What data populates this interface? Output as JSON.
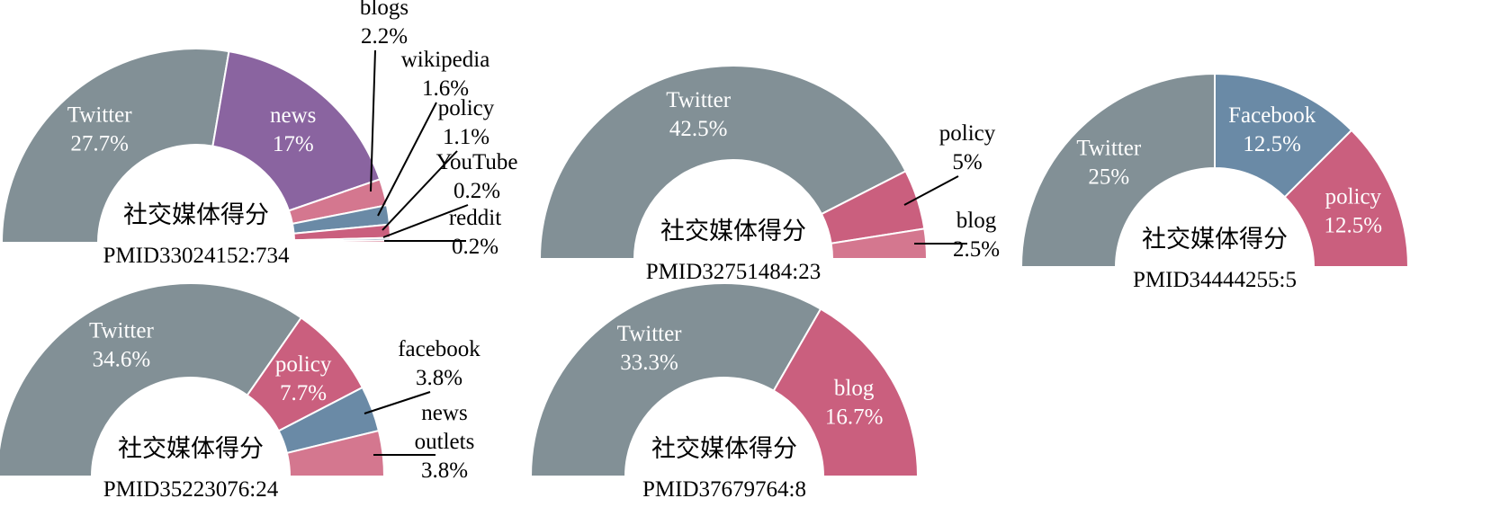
{
  "colors": {
    "Twitter": "#829096",
    "news": "#8a64a0",
    "blogs": "#d4778f",
    "blog": "#d4778f",
    "wikipedia": "#6a8aa6",
    "policy": "#ca5f7e",
    "YouTube": "#6a8aa6",
    "reddit": "#d4778f",
    "Facebook": "#6a8aa6",
    "facebook": "#6a8aa6",
    "news_outlets": "#d4778f",
    "blog_pmid37679764": "#ca5f7e"
  },
  "chart_data": [
    {
      "type": "pie",
      "variant": "semi-donut",
      "center_title": "社交媒体得分",
      "center_subtitle": "PMID33024152:734",
      "slices": [
        {
          "label": "Twitter",
          "label_lines": [
            "Twitter"
          ],
          "value": 27.7,
          "value_text": "27.7%",
          "color_key": "Twitter",
          "label_placement": "inside"
        },
        {
          "label": "news",
          "label_lines": [
            "news"
          ],
          "value": 17,
          "value_text": "17%",
          "color_key": "news",
          "label_placement": "inside"
        },
        {
          "label": "blogs",
          "label_lines": [
            "blogs"
          ],
          "value": 2.2,
          "value_text": "2.2%",
          "color_key": "blogs",
          "label_placement": "outside"
        },
        {
          "label": "wikipedia",
          "label_lines": [
            "wikipedia"
          ],
          "value": 1.6,
          "value_text": "1.6%",
          "color_key": "wikipedia",
          "label_placement": "outside"
        },
        {
          "label": "policy",
          "label_lines": [
            "policy"
          ],
          "value": 1.1,
          "value_text": "1.1%",
          "color_key": "policy",
          "label_placement": "outside"
        },
        {
          "label": "YouTube",
          "label_lines": [
            "YouTube"
          ],
          "value": 0.2,
          "value_text": "0.2%",
          "color_key": "YouTube",
          "label_placement": "outside"
        },
        {
          "label": "reddit",
          "label_lines": [
            "reddit"
          ],
          "value": 0.2,
          "value_text": "0.2%",
          "color_key": "reddit",
          "label_placement": "outside"
        }
      ]
    },
    {
      "type": "pie",
      "variant": "semi-donut",
      "center_title": "社交媒体得分",
      "center_subtitle": "PMID32751484:23",
      "slices": [
        {
          "label": "Twitter",
          "label_lines": [
            "Twitter"
          ],
          "value": 42.5,
          "value_text": "42.5%",
          "color_key": "Twitter",
          "label_placement": "inside"
        },
        {
          "label": "policy",
          "label_lines": [
            "policy"
          ],
          "value": 5,
          "value_text": "5%",
          "color_key": "policy",
          "label_placement": "outside"
        },
        {
          "label": "blog",
          "label_lines": [
            "blog"
          ],
          "value": 2.5,
          "value_text": "2.5%",
          "color_key": "blog",
          "label_placement": "outside"
        }
      ]
    },
    {
      "type": "pie",
      "variant": "semi-donut",
      "center_title": "社交媒体得分",
      "center_subtitle": "PMID34444255:5",
      "slices": [
        {
          "label": "Twitter",
          "label_lines": [
            "Twitter"
          ],
          "value": 25,
          "value_text": "25%",
          "color_key": "Twitter",
          "label_placement": "inside"
        },
        {
          "label": "Facebook",
          "label_lines": [
            "Facebook"
          ],
          "value": 12.5,
          "value_text": "12.5%",
          "color_key": "Facebook",
          "label_placement": "inside"
        },
        {
          "label": "policy",
          "label_lines": [
            "policy"
          ],
          "value": 12.5,
          "value_text": "12.5%",
          "color_key": "policy",
          "label_placement": "inside"
        }
      ]
    },
    {
      "type": "pie",
      "variant": "semi-donut",
      "center_title": "社交媒体得分",
      "center_subtitle": "PMID35223076:24",
      "slices": [
        {
          "label": "Twitter",
          "label_lines": [
            "Twitter"
          ],
          "value": 34.6,
          "value_text": "34.6%",
          "color_key": "Twitter",
          "label_placement": "inside"
        },
        {
          "label": "policy",
          "label_lines": [
            "policy"
          ],
          "value": 7.7,
          "value_text": "7.7%",
          "color_key": "policy",
          "label_placement": "inside"
        },
        {
          "label": "facebook",
          "label_lines": [
            "facebook"
          ],
          "value": 3.8,
          "value_text": "3.8%",
          "color_key": "facebook",
          "label_placement": "outside"
        },
        {
          "label": "news outlets",
          "label_lines": [
            "news",
            "outlets"
          ],
          "value": 3.8,
          "value_text": "3.8%",
          "color_key": "news_outlets",
          "label_placement": "outside"
        }
      ]
    },
    {
      "type": "pie",
      "variant": "semi-donut",
      "center_title": "社交媒体得分",
      "center_subtitle": "PMID37679764:8",
      "slices": [
        {
          "label": "Twitter",
          "label_lines": [
            "Twitter"
          ],
          "value": 33.3,
          "value_text": "33.3%",
          "color_key": "Twitter",
          "label_placement": "inside"
        },
        {
          "label": "blog",
          "label_lines": [
            "blog"
          ],
          "value": 16.7,
          "value_text": "16.7%",
          "color_key": "blog_pmid37679764",
          "label_placement": "inside"
        }
      ]
    }
  ]
}
